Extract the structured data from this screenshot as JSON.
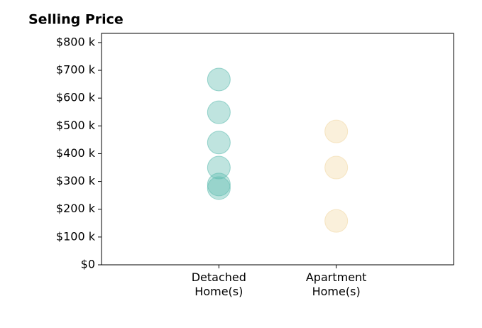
{
  "chart_data": {
    "type": "strip",
    "title": "Selling Price",
    "categories": [
      "Detached\nHome(s)",
      "Apartment\nHome(s)"
    ],
    "values": [
      [
        667000,
        549000,
        440000,
        350000,
        289000,
        276000
      ],
      [
        480000,
        350000,
        158000
      ]
    ],
    "colors": [
      "#5fbcb0",
      "#f2d9a6"
    ],
    "ylim": [
      0,
      833000
    ],
    "yticks": [
      {
        "value": 0,
        "label": "$0"
      },
      {
        "value": 100000,
        "label": "$100 k"
      },
      {
        "value": 200000,
        "label": "$200 k"
      },
      {
        "value": 300000,
        "label": "$300 k"
      },
      {
        "value": 400000,
        "label": "$400 k"
      },
      {
        "value": 500000,
        "label": "$500 k"
      },
      {
        "value": 600000,
        "label": "$600 k"
      },
      {
        "value": 700000,
        "label": "$700 k"
      },
      {
        "value": 800000,
        "label": "$800 k"
      }
    ],
    "grid": false
  }
}
